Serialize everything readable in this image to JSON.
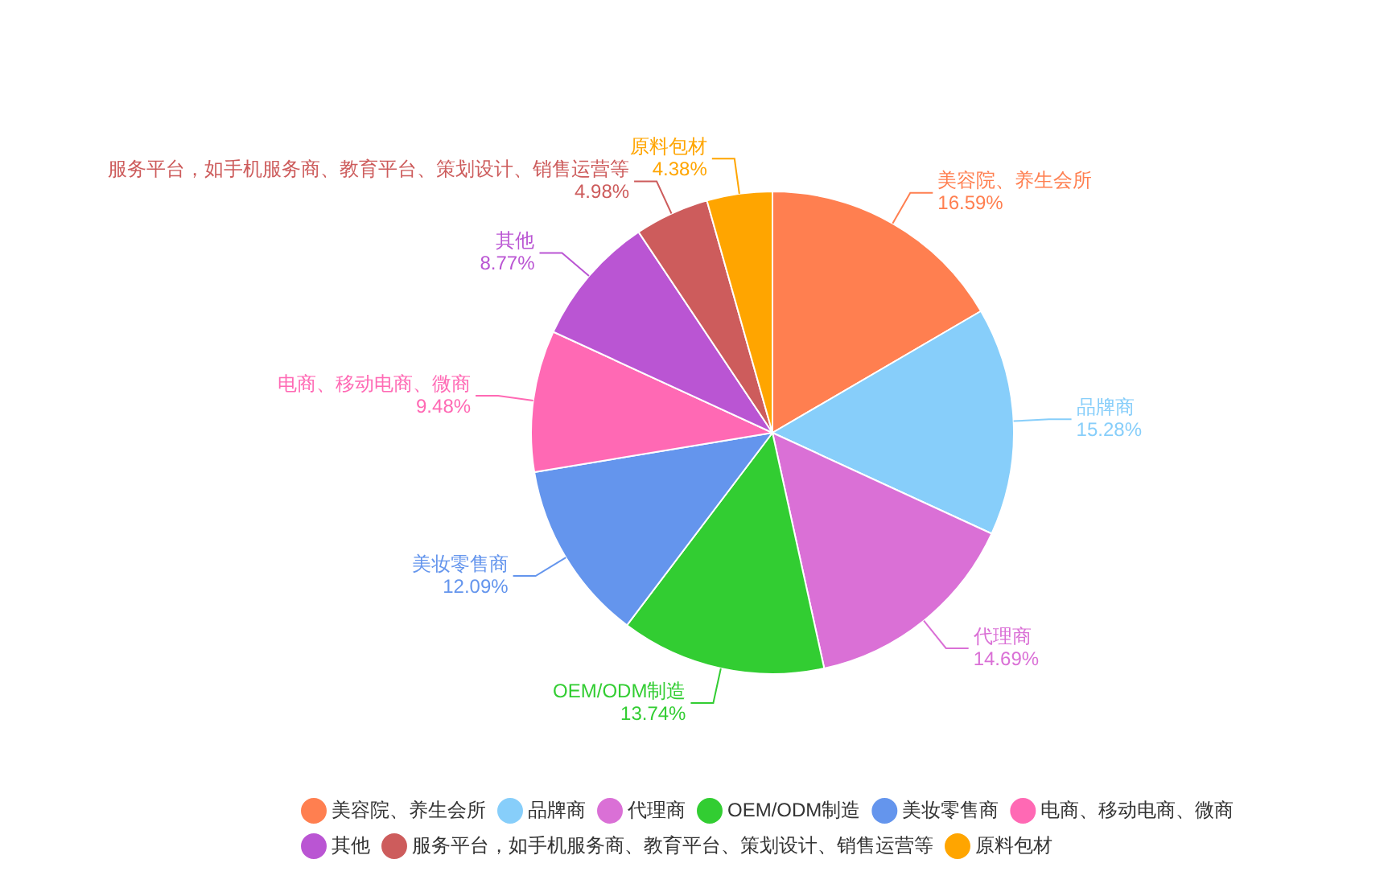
{
  "chart_data": {
    "type": "pie",
    "categories": [
      "美容院、养生会所",
      "品牌商",
      "代理商",
      "OEM/ODM制造",
      "美妆零售商",
      "电商、移动电商、微商",
      "其他",
      "服务平台，如手机服务商、教育平台、策划设计、销售运营等",
      "原料包材"
    ],
    "values": [
      16.59,
      15.28,
      14.69,
      13.74,
      12.09,
      9.48,
      8.77,
      4.98,
      4.38
    ],
    "value_labels": [
      "16.59%",
      "15.28%",
      "14.69%",
      "13.74%",
      "12.09%",
      "9.48%",
      "8.77%",
      "4.98%",
      "4.38%"
    ],
    "colors": [
      "#ff7f50",
      "#87cefa",
      "#da70d6",
      "#32cd32",
      "#6495ed",
      "#ff69b4",
      "#ba55d3",
      "#cd5c5c",
      "#ffa500"
    ],
    "legend": "bottom left"
  }
}
